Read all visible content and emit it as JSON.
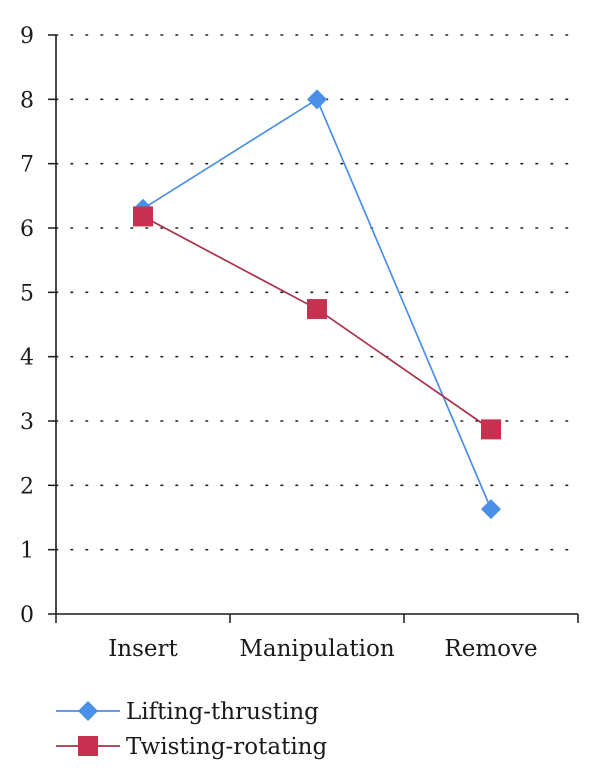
{
  "chart_data": {
    "type": "line",
    "title": "",
    "xlabel": "",
    "ylabel": "",
    "categories": [
      "Insert",
      "Manipulation",
      "Remove"
    ],
    "ylim": [
      0,
      9
    ],
    "yticks": [
      "0",
      "1",
      "2",
      "3",
      "4",
      "5",
      "6",
      "7",
      "8",
      "9"
    ],
    "grid": "horizontal-dotted",
    "legend_position": "bottom-left",
    "series": [
      {
        "name": "Lifting-thrusting",
        "values": [
          6.3,
          8.0,
          1.63
        ],
        "color": "#4a8fe8",
        "marker": "diamond"
      },
      {
        "name": "Twisting-rotating",
        "values": [
          6.18,
          4.74,
          2.87
        ],
        "color": "#c8304f",
        "line_color": "#a7324a",
        "marker": "square"
      }
    ]
  }
}
